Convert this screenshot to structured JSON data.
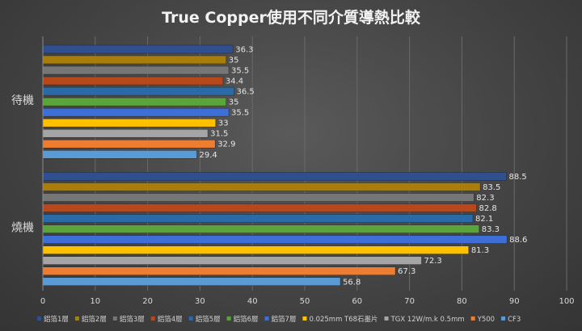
{
  "chart_data": {
    "type": "bar",
    "orientation": "horizontal",
    "title": "True Copper使用不同介質導熱比較",
    "xlabel": "",
    "ylabel": "",
    "xlim": [
      0,
      100
    ],
    "x_ticks": [
      0,
      10,
      20,
      30,
      40,
      50,
      60,
      70,
      80,
      90,
      100
    ],
    "categories": [
      "待機",
      "燒機"
    ],
    "grid": true,
    "legend_position": "bottom",
    "series": [
      {
        "name": "鋁箔1層",
        "color": "#2f4f8f",
        "values": [
          36.3,
          88.5
        ]
      },
      {
        "name": "鋁箔2層",
        "color": "#a97d0a",
        "values": [
          35,
          83.5
        ]
      },
      {
        "name": "鋁箔3層",
        "color": "#767676",
        "values": [
          35.5,
          82.3
        ]
      },
      {
        "name": "鋁箔4層",
        "color": "#b8481a",
        "values": [
          34.4,
          82.8
        ]
      },
      {
        "name": "鋁箔5層",
        "color": "#2a6aa6",
        "values": [
          36.5,
          82.1
        ]
      },
      {
        "name": "鋁箔6層",
        "color": "#5aa43b",
        "values": [
          35,
          83.3
        ]
      },
      {
        "name": "鋁箔7層",
        "color": "#3d6fd6",
        "values": [
          35.5,
          88.6
        ]
      },
      {
        "name": "0.025mm  T68石墨片",
        "color": "#ffc000",
        "values": [
          33,
          81.3
        ]
      },
      {
        "name": "TGX 12W/m.k 0.5mm",
        "color": "#a5a5a5",
        "values": [
          31.5,
          72.3
        ]
      },
      {
        "name": "Y500",
        "color": "#ed7d31",
        "values": [
          32.9,
          67.3
        ]
      },
      {
        "name": "CF3",
        "color": "#5b9bd5",
        "values": [
          29.4,
          56.8
        ]
      }
    ]
  }
}
